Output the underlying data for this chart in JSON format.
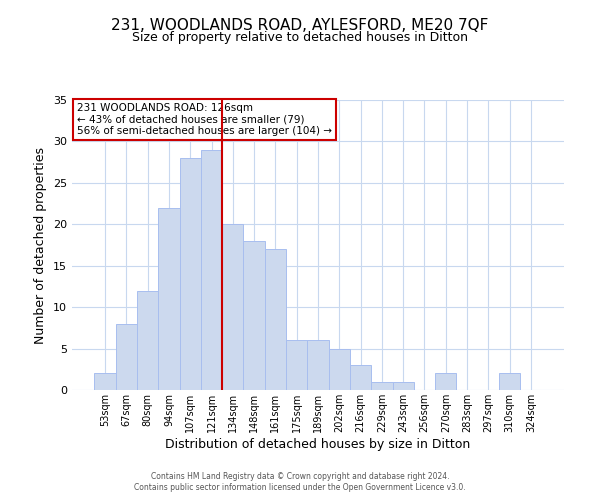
{
  "title_line1": "231, WOODLANDS ROAD, AYLESFORD, ME20 7QF",
  "title_line2": "Size of property relative to detached houses in Ditton",
  "xlabel": "Distribution of detached houses by size in Ditton",
  "ylabel": "Number of detached properties",
  "bin_labels": [
    "53sqm",
    "67sqm",
    "80sqm",
    "94sqm",
    "107sqm",
    "121sqm",
    "134sqm",
    "148sqm",
    "161sqm",
    "175sqm",
    "189sqm",
    "202sqm",
    "216sqm",
    "229sqm",
    "243sqm",
    "256sqm",
    "270sqm",
    "283sqm",
    "297sqm",
    "310sqm",
    "324sqm"
  ],
  "bar_heights": [
    2,
    8,
    12,
    22,
    28,
    29,
    20,
    18,
    17,
    6,
    6,
    5,
    3,
    1,
    1,
    0,
    2,
    0,
    0,
    2,
    0
  ],
  "bar_color": "#ccd9ee",
  "bar_edge_color": "#a8beef",
  "vline_x": 5.5,
  "vline_color": "#cc0000",
  "ylim": [
    0,
    35
  ],
  "yticks": [
    0,
    5,
    10,
    15,
    20,
    25,
    30,
    35
  ],
  "annotation_title": "231 WOODLANDS ROAD: 126sqm",
  "annotation_line1": "← 43% of detached houses are smaller (79)",
  "annotation_line2": "56% of semi-detached houses are larger (104) →",
  "annotation_box_color": "#ffffff",
  "annotation_box_edge": "#cc0000",
  "footer_line1": "Contains HM Land Registry data © Crown copyright and database right 2024.",
  "footer_line2": "Contains public sector information licensed under the Open Government Licence v3.0.",
  "background_color": "#ffffff",
  "grid_color": "#c8d8ef"
}
